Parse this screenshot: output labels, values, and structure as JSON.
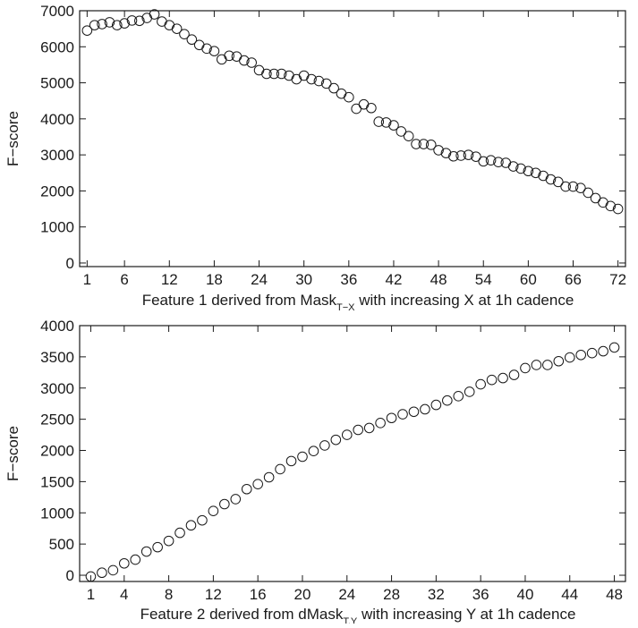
{
  "chart_data": [
    {
      "type": "scatter",
      "xlabel": "Feature 1 derived from Mask",
      "xlabel_sub": "T−X",
      "xlabel_tail": " with increasing X at 1h cadence",
      "ylabel": "F−score",
      "xlim": [
        0,
        73
      ],
      "ylim": [
        -100,
        7000
      ],
      "xticks": [
        1,
        6,
        12,
        18,
        24,
        30,
        36,
        42,
        48,
        54,
        60,
        66,
        72
      ],
      "yticks": [
        0,
        1000,
        2000,
        3000,
        4000,
        5000,
        6000,
        7000
      ],
      "marker": "open-circle",
      "grid": false,
      "series": [
        {
          "x": [
            1,
            2,
            3,
            4,
            5,
            6,
            7,
            8,
            9,
            10,
            11,
            12,
            13,
            14,
            15,
            16,
            17,
            18,
            19,
            20,
            21,
            22,
            23,
            24,
            25,
            26,
            27,
            28,
            29,
            30,
            31,
            32,
            33,
            34,
            35,
            36,
            37,
            38,
            39,
            40,
            41,
            42,
            43,
            44,
            45,
            46,
            47,
            48,
            49,
            50,
            51,
            52,
            53,
            54,
            55,
            56,
            57,
            58,
            59,
            60,
            61,
            62,
            63,
            64,
            65,
            66,
            67,
            68,
            69,
            70,
            71,
            72
          ],
          "y": [
            6450,
            6600,
            6630,
            6680,
            6600,
            6650,
            6730,
            6720,
            6800,
            6900,
            6700,
            6600,
            6500,
            6350,
            6200,
            6050,
            5950,
            5880,
            5650,
            5750,
            5730,
            5620,
            5560,
            5350,
            5250,
            5250,
            5250,
            5200,
            5100,
            5200,
            5100,
            5050,
            4980,
            4850,
            4700,
            4600,
            4280,
            4400,
            4300,
            3920,
            3900,
            3820,
            3650,
            3520,
            3300,
            3300,
            3280,
            3130,
            3050,
            2960,
            2980,
            3000,
            2950,
            2820,
            2850,
            2800,
            2780,
            2680,
            2620,
            2550,
            2500,
            2420,
            2320,
            2250,
            2120,
            2120,
            2080,
            1950,
            1800,
            1680,
            1580,
            1500
          ]
        }
      ]
    },
    {
      "type": "scatter",
      "xlabel": "Feature 2 derived from dMask",
      "xlabel_sub": "T,Y",
      "xlabel_tail": " with increasing Y at 1h cadence",
      "ylabel": "F−score",
      "xlim": [
        0,
        49
      ],
      "ylim": [
        -100,
        4000
      ],
      "xticks": [
        1,
        4,
        8,
        12,
        16,
        20,
        24,
        28,
        32,
        36,
        40,
        44,
        48
      ],
      "yticks": [
        0,
        500,
        1000,
        1500,
        2000,
        2500,
        3000,
        3500,
        4000
      ],
      "marker": "open-circle",
      "grid": false,
      "series": [
        {
          "x": [
            1,
            2,
            3,
            4,
            5,
            6,
            7,
            8,
            9,
            10,
            11,
            12,
            13,
            14,
            15,
            16,
            17,
            18,
            19,
            20,
            21,
            22,
            23,
            24,
            25,
            26,
            27,
            28,
            29,
            30,
            31,
            32,
            33,
            34,
            35,
            36,
            37,
            38,
            39,
            40,
            41,
            42,
            43,
            44,
            45,
            46,
            47,
            48
          ],
          "y": [
            -20,
            40,
            80,
            190,
            250,
            380,
            450,
            550,
            680,
            800,
            880,
            1030,
            1140,
            1220,
            1380,
            1460,
            1570,
            1700,
            1830,
            1900,
            1990,
            2080,
            2170,
            2250,
            2330,
            2360,
            2440,
            2520,
            2580,
            2620,
            2660,
            2730,
            2800,
            2870,
            2940,
            3060,
            3130,
            3160,
            3210,
            3320,
            3370,
            3370,
            3430,
            3490,
            3530,
            3560,
            3590,
            3650
          ]
        }
      ]
    }
  ]
}
